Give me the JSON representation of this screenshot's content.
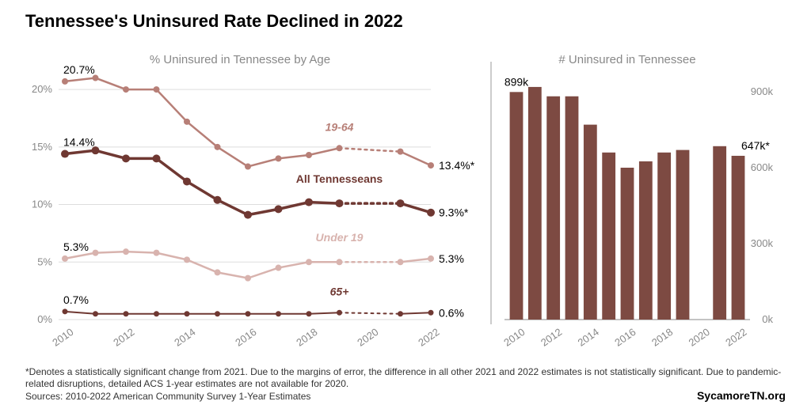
{
  "title": "Tennessee's Uninsured Rate Declined in 2022",
  "footnote": "*Denotes a statistically significant change from 2021. Due to the margins of error, the difference in all other 2021 and 2022 estimates is not statistically significant. Due to pandemic-related disruptions, detailed ACS 1-year estimates are not available for 2020.",
  "sources": "Sources: 2010-2022 American Community Survey 1-Year Estimates",
  "brand": "SycamoreTN.org",
  "left_chart": {
    "title": "% Uninsured in Tennessee by Age",
    "title_fontsize": 15,
    "title_color": "#888888",
    "background_color": "#ffffff",
    "grid_color": "#dddddd",
    "axis_text_color": "#888888",
    "axis_fontsize": 13,
    "years": [
      2010,
      2011,
      2012,
      2013,
      2014,
      2015,
      2016,
      2017,
      2018,
      2019,
      2020,
      2021,
      2022
    ],
    "xtick_years": [
      2010,
      2012,
      2014,
      2016,
      2018,
      2020,
      2022
    ],
    "ylim": [
      0,
      22
    ],
    "yticks": [
      0,
      5,
      10,
      15,
      20
    ],
    "ytick_labels": [
      "0%",
      "5%",
      "10%",
      "15%",
      "20%"
    ],
    "gap_year": 2020,
    "series": [
      {
        "name": "19-64",
        "color": "#b77f77",
        "linewidth": 2.5,
        "marker_size": 4,
        "label_italic": true,
        "values": [
          20.7,
          21.0,
          20.0,
          20.0,
          17.2,
          15.0,
          13.3,
          14.0,
          14.3,
          14.9,
          null,
          14.6,
          13.4
        ],
        "start_label": "20.7%",
        "end_label": "13.4%*",
        "series_label_x": 2019,
        "series_label_y": 16.4
      },
      {
        "name": "All Tennesseans",
        "color": "#6f3832",
        "linewidth": 3.5,
        "marker_size": 5,
        "label_italic": false,
        "values": [
          14.4,
          14.7,
          14.0,
          14.0,
          12.0,
          10.4,
          9.1,
          9.6,
          10.2,
          10.1,
          null,
          10.1,
          9.3
        ],
        "start_label": "14.4%",
        "end_label": "9.3%*",
        "series_label_x": 2019,
        "series_label_y": 11.9
      },
      {
        "name": "Under 19",
        "color": "#d8b3ae",
        "linewidth": 2.5,
        "marker_size": 4,
        "label_italic": true,
        "values": [
          5.3,
          5.8,
          5.9,
          5.8,
          5.2,
          4.1,
          3.6,
          4.5,
          5.0,
          5.0,
          null,
          5.0,
          5.3
        ],
        "start_label": "5.3%",
        "end_label": "5.3%",
        "series_label_x": 2019,
        "series_label_y": 6.8
      },
      {
        "name": "65+",
        "color": "#6f3832",
        "linewidth": 2,
        "marker_size": 3.5,
        "label_italic": true,
        "values": [
          0.7,
          0.5,
          0.5,
          0.5,
          0.5,
          0.5,
          0.5,
          0.5,
          0.5,
          0.6,
          null,
          0.5,
          0.6
        ],
        "start_label": "0.7%",
        "end_label": "0.6%",
        "series_label_x": 2019,
        "series_label_y": 2.1
      }
    ]
  },
  "right_chart": {
    "type": "bar",
    "title": "# Uninsured in Tennessee",
    "title_fontsize": 15,
    "title_color": "#888888",
    "bar_color": "#7d4a42",
    "bar_width": 0.72,
    "ylim": [
      0,
      1000
    ],
    "yticks": [
      0,
      300,
      600,
      900
    ],
    "ytick_labels": [
      "0k",
      "300k",
      "600k",
      "900k"
    ],
    "axis_text_color": "#888888",
    "axis_fontsize": 13,
    "years": [
      2010,
      2011,
      2012,
      2013,
      2014,
      2015,
      2016,
      2017,
      2018,
      2019,
      2020,
      2021,
      2022
    ],
    "xtick_years": [
      2010,
      2012,
      2014,
      2016,
      2018,
      2020,
      2022
    ],
    "values": [
      899,
      919,
      882,
      882,
      770,
      660,
      600,
      625,
      660,
      670,
      null,
      685,
      647
    ],
    "start_label": "899k",
    "end_label": "647k*"
  },
  "divider_color": "#999999"
}
